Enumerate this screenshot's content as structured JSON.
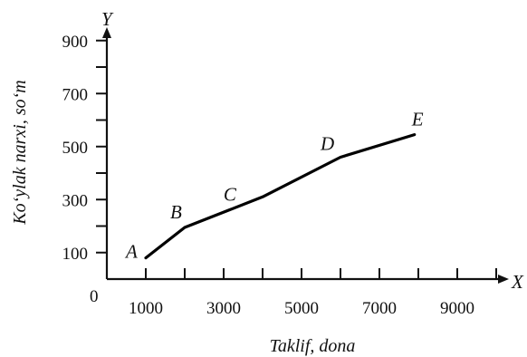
{
  "chart_data": {
    "type": "line",
    "x_axis_name": "X",
    "y_axis_name": "Y",
    "origin_label": "0",
    "xlabel": "Taklif, dona",
    "ylabel": "Ko‘ylak narxi, so‘m",
    "xlim": [
      0,
      10500
    ],
    "ylim": [
      0,
      1000
    ],
    "x_ticks": [
      1000,
      2000,
      3000,
      4000,
      5000,
      6000,
      7000,
      8000,
      9000,
      10000
    ],
    "x_tick_labels": [
      "1000",
      "3000",
      "5000",
      "7000",
      "9000"
    ],
    "x_tick_label_values": [
      1000,
      3000,
      5000,
      7000,
      9000
    ],
    "y_ticks": [
      100,
      200,
      300,
      400,
      500,
      600,
      700,
      800,
      900
    ],
    "y_tick_labels": [
      "100",
      "300",
      "500",
      "700",
      "900"
    ],
    "y_tick_label_values": [
      100,
      300,
      500,
      700,
      900
    ],
    "grid": false,
    "series": [
      {
        "x": [
          1000,
          2000,
          4000,
          6000,
          7900
        ],
        "y": [
          80,
          195,
          310,
          460,
          545
        ],
        "point_labels": [
          "A",
          "B",
          "",
          "D",
          "E"
        ]
      }
    ],
    "annotations": [
      {
        "text": "A",
        "x": 1000,
        "y": 80
      },
      {
        "text": "B",
        "x": 2000,
        "y": 195
      },
      {
        "text": "C",
        "x": 3300,
        "y": 265
      },
      {
        "text": "D",
        "x": 6000,
        "y": 460
      },
      {
        "text": "E",
        "x": 7900,
        "y": 545
      }
    ]
  }
}
